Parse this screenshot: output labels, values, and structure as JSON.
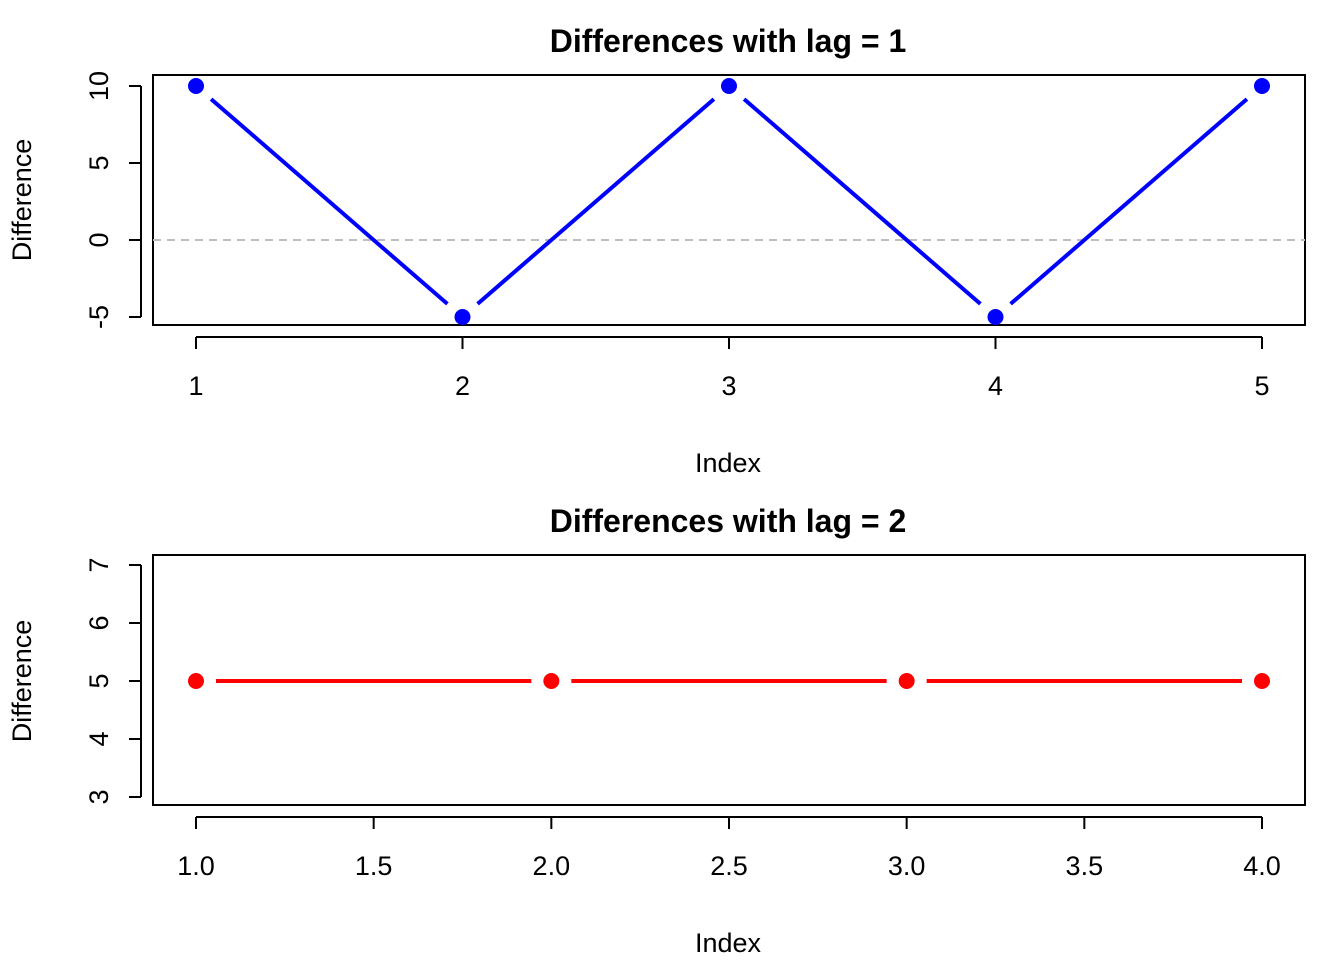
{
  "chart_data": [
    {
      "type": "line",
      "title": "Differences with lag = 1",
      "xlabel": "Index",
      "ylabel": "Difference",
      "x": [
        1,
        2,
        3,
        4,
        5
      ],
      "xticks": [
        "1",
        "2",
        "3",
        "4",
        "5"
      ],
      "yticks": [
        "-5",
        "0",
        "5",
        "10"
      ],
      "xlim": [
        1,
        5
      ],
      "ylim": [
        -5,
        10
      ],
      "series": [
        {
          "values": [
            10,
            -5,
            10,
            -5,
            10
          ],
          "color": "#0000ff"
        }
      ],
      "reference_line": {
        "y": 0,
        "style": "dashed",
        "color": "#bebebe"
      },
      "grid": false,
      "legend": "none"
    },
    {
      "type": "line",
      "title": "Differences with lag = 2",
      "xlabel": "Index",
      "ylabel": "Difference",
      "x": [
        1,
        2,
        3,
        4
      ],
      "xticks": [
        "1.0",
        "1.5",
        "2.0",
        "2.5",
        "3.0",
        "3.5",
        "4.0"
      ],
      "yticks": [
        "3",
        "4",
        "5",
        "6",
        "7"
      ],
      "xlim": [
        1,
        4
      ],
      "ylim": [
        3,
        7
      ],
      "series": [
        {
          "values": [
            5,
            5,
            5,
            5
          ],
          "color": "#ff0000"
        }
      ],
      "grid": false,
      "legend": "none"
    }
  ]
}
